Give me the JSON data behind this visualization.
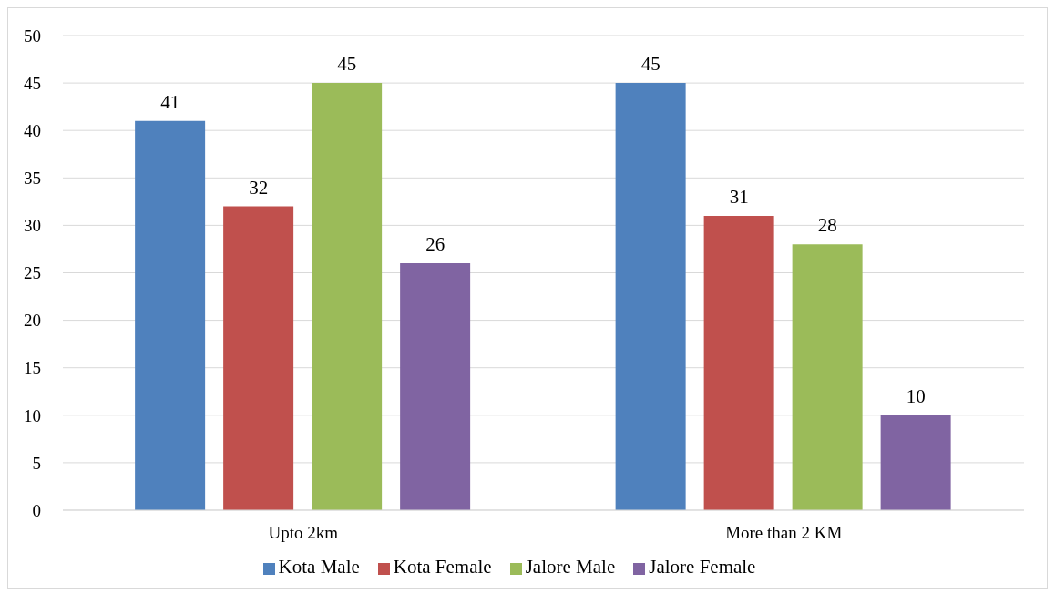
{
  "chart_data": {
    "type": "bar",
    "categories": [
      "Upto 2km",
      "More than 2 KM"
    ],
    "series": [
      {
        "name": "Kota Male",
        "color": "#4f81bd",
        "values": [
          41,
          45
        ]
      },
      {
        "name": "Kota Female",
        "color": "#c0504d",
        "values": [
          32,
          31
        ]
      },
      {
        "name": "Jalore Male",
        "color": "#9bbb59",
        "values": [
          45,
          28
        ]
      },
      {
        "name": "Jalore Female",
        "color": "#8064a2",
        "values": [
          26,
          10
        ]
      }
    ],
    "ylim": [
      0,
      50
    ],
    "yticks": [
      0,
      5,
      10,
      15,
      20,
      25,
      30,
      35,
      40,
      45,
      50
    ],
    "grid": "y",
    "legend": "bottom",
    "data_labels": true
  }
}
